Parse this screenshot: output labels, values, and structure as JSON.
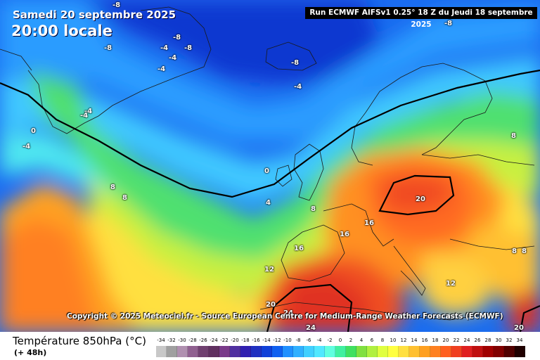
{
  "header": {
    "date": "Samedi 20 septembre 2025",
    "time": "20:00 locale",
    "run": "Run ECMWF AIFSv1 0.25° 18 Z du Jeudi 18 septembre 2025"
  },
  "copyright": "Copyright © 2025 Meteociel.fr - Source European Centre for Medium-Range Weather Forecasts (ECMWF)",
  "footer": {
    "variable": "Température 850hPa (°C)",
    "lead": "(+ 48h)"
  },
  "contour_labels": [
    "-8",
    "-8",
    "-8",
    "-8",
    "-4",
    "-4",
    "-4",
    "-8",
    "-4",
    "-4",
    "-4",
    "0",
    "-4",
    "0",
    "4",
    "8",
    "8",
    "8",
    "8",
    "16",
    "16",
    "16",
    "20",
    "12",
    "12",
    "20",
    "24",
    "24",
    "20",
    "8",
    "8",
    "-8"
  ],
  "scale": {
    "ticks": [
      "-34",
      "-32",
      "-30",
      "-28",
      "-26",
      "-24",
      "-22",
      "-20",
      "-18",
      "-16",
      "-14",
      "-12",
      "-10",
      "-8",
      "-6",
      "-4",
      "-2",
      "0",
      "2",
      "4",
      "6",
      "8",
      "10",
      "12",
      "14",
      "16",
      "18",
      "20",
      "22",
      "24",
      "26",
      "28",
      "30",
      "32",
      "34"
    ],
    "colors": [
      "#c8c8c8",
      "#a0a0a0",
      "#b090b0",
      "#906090",
      "#704070",
      "#603060",
      "#7a3a8a",
      "#5030a0",
      "#3020b0",
      "#2030c0",
      "#1040d8",
      "#1060f0",
      "#2090ff",
      "#30b0ff",
      "#40d0ff",
      "#50e8ff",
      "#60ffe0",
      "#40f0a0",
      "#40e060",
      "#80e040",
      "#b0f040",
      "#e0ff40",
      "#ffff40",
      "#ffe040",
      "#ffc030",
      "#ffa020",
      "#ff8020",
      "#ff6020",
      "#f04020",
      "#e02020",
      "#c01010",
      "#a00000",
      "#800000",
      "#500000",
      "#200000"
    ]
  }
}
